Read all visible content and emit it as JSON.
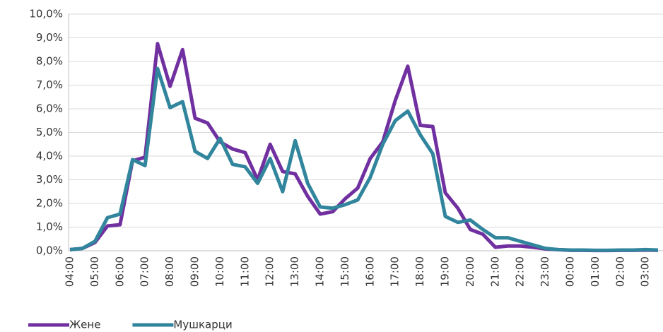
{
  "chart_data": {
    "type": "line",
    "categories": [
      "04:00",
      null,
      "05:00",
      null,
      "06:00",
      null,
      "07:00",
      null,
      "08:00",
      null,
      "09:00",
      null,
      "10:00",
      null,
      "11:00",
      null,
      "12:00",
      null,
      "13:00",
      null,
      "14:00",
      null,
      "15:00",
      null,
      "16:00",
      null,
      "17:00",
      null,
      "18:00",
      null,
      "19:00",
      null,
      "20:00",
      null,
      "21:00",
      null,
      "22:00",
      null,
      "23:00",
      null,
      "00:00",
      null,
      "01:00",
      null,
      "02:00",
      null,
      "03:00",
      null
    ],
    "series": [
      {
        "name": "Жене",
        "color": "#7030a0",
        "values": [
          0.05,
          0.1,
          0.35,
          1.05,
          1.1,
          3.8,
          3.95,
          8.75,
          6.95,
          8.5,
          5.6,
          5.4,
          4.6,
          4.3,
          4.15,
          3.0,
          4.5,
          3.35,
          3.25,
          2.3,
          1.55,
          1.65,
          2.2,
          2.65,
          3.9,
          4.6,
          6.35,
          7.8,
          5.3,
          5.25,
          2.45,
          1.8,
          0.9,
          0.7,
          0.15,
          0.2,
          0.2,
          0.15,
          0.08,
          0.05,
          0.02,
          0.02,
          0.01,
          0.01,
          0.02,
          0.02,
          0.03,
          0.02
        ]
      },
      {
        "name": "Мушкарци",
        "color": "#31859c",
        "values": [
          0.05,
          0.1,
          0.4,
          1.4,
          1.55,
          3.85,
          3.6,
          7.7,
          6.05,
          6.3,
          4.2,
          3.9,
          4.75,
          3.65,
          3.55,
          2.85,
          3.9,
          2.5,
          4.65,
          2.85,
          1.85,
          1.8,
          1.95,
          2.15,
          3.1,
          4.5,
          5.5,
          5.9,
          4.9,
          4.1,
          1.45,
          1.2,
          1.3,
          0.9,
          0.55,
          0.55,
          0.4,
          0.25,
          0.1,
          0.05,
          0.03,
          0.03,
          0.02,
          0.02,
          0.03,
          0.03,
          0.05,
          0.03
        ]
      }
    ],
    "ylim": [
      0,
      10
    ],
    "yticks": [
      {
        "value": 0,
        "label": "0,0%"
      },
      {
        "value": 1,
        "label": "1,0%"
      },
      {
        "value": 2,
        "label": "2,0%"
      },
      {
        "value": 3,
        "label": "3,0%"
      },
      {
        "value": 4,
        "label": "4,0%"
      },
      {
        "value": 5,
        "label": "5,0%"
      },
      {
        "value": 6,
        "label": "6,0%"
      },
      {
        "value": 7,
        "label": "7,0%"
      },
      {
        "value": 8,
        "label": "8,0%"
      },
      {
        "value": 9,
        "label": "9,0%"
      },
      {
        "value": 10,
        "label": "10,0%"
      }
    ],
    "grid": true,
    "legend": "bottom-left"
  }
}
